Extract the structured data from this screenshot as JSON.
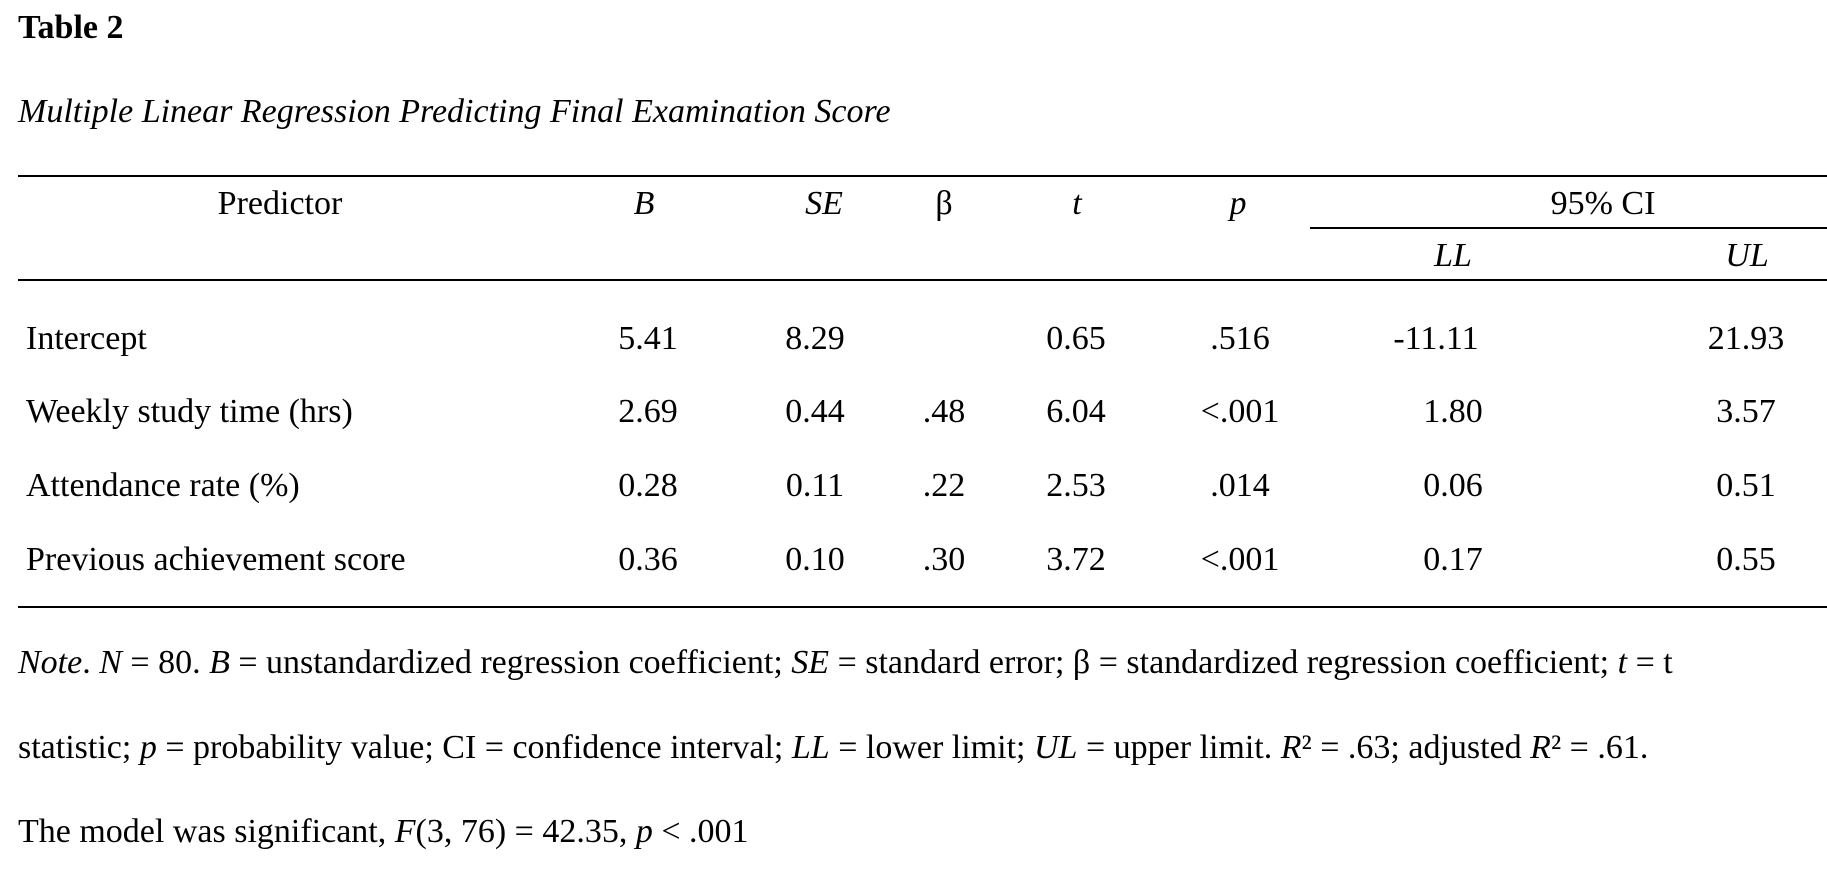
{
  "table": {
    "label": "Table 2",
    "title": "Multiple Linear Regression Predicting Final Examination Score",
    "headers": {
      "predictor": "Predictor",
      "b": "B",
      "se": "SE",
      "beta": "β",
      "t": "t",
      "p": "p",
      "ci": "95% CI",
      "ll": "LL",
      "ul": "UL"
    },
    "rows": [
      {
        "predictor": "Intercept",
        "b": "5.41",
        "se": "8.29",
        "beta": "",
        "t": "0.65",
        "p": ".516",
        "ll": "-11.11",
        "ul": "21.93"
      },
      {
        "predictor": "Weekly study time (hrs)",
        "b": "2.69",
        "se": "0.44",
        "beta": ".48",
        "t": "6.04",
        "p": "<.001",
        "ll": "1.80",
        "ul": "3.57"
      },
      {
        "predictor": "Attendance rate (%)",
        "b": "0.28",
        "se": "0.11",
        "beta": ".22",
        "t": "2.53",
        "p": ".014",
        "ll": "0.06",
        "ul": "0.51"
      },
      {
        "predictor": "Previous achievement score",
        "b": "0.36",
        "se": "0.10",
        "beta": ".30",
        "t": "3.72",
        "p": "<.001",
        "ll": "0.17",
        "ul": "0.55"
      }
    ]
  },
  "note": {
    "note_label": "Note",
    "l1_a": ". ",
    "l1_N": "N",
    "l1_b": " = 80. ",
    "l1_B": "B",
    "l1_c": " = unstandardized regression coefficient; ",
    "l1_SE": "SE",
    "l1_d": " = standard error; β = standardized regression coefficient; ",
    "l1_t": "t",
    "l1_e": " = t",
    "l2_a": "statistic; ",
    "l2_p": "p",
    "l2_b": " = probability value; CI = confidence interval; ",
    "l2_LL": "LL",
    "l2_c": " = lower limit; ",
    "l2_UL": "UL",
    "l2_d": " = upper limit. ",
    "l2_R1": "R",
    "l2_e": "² = .63; adjusted ",
    "l2_R2": "R",
    "l2_f": "² = .61.",
    "l3_a": "The model was significant, ",
    "l3_F": "F",
    "l3_b": "(3, 76) = 42.35, ",
    "l3_p": "p",
    "l3_c": " < .001"
  }
}
